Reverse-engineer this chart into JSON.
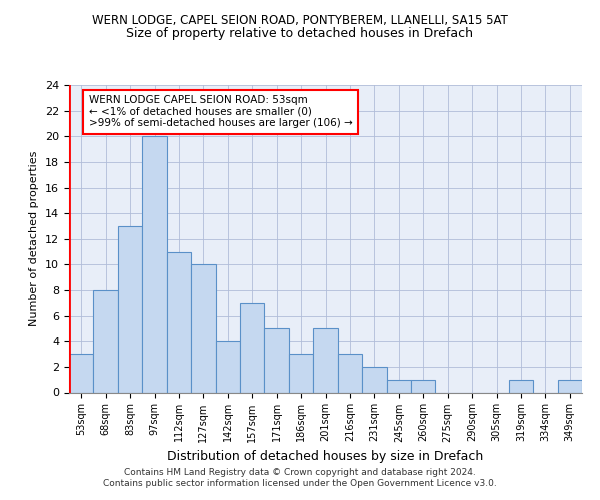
{
  "title1": "WERN LODGE, CAPEL SEION ROAD, PONTYBEREM, LLANELLI, SA15 5AT",
  "title2": "Size of property relative to detached houses in Drefach",
  "xlabel": "Distribution of detached houses by size in Drefach",
  "ylabel": "Number of detached properties",
  "categories": [
    "53sqm",
    "68sqm",
    "83sqm",
    "97sqm",
    "112sqm",
    "127sqm",
    "142sqm",
    "157sqm",
    "171sqm",
    "186sqm",
    "201sqm",
    "216sqm",
    "231sqm",
    "245sqm",
    "260sqm",
    "275sqm",
    "290sqm",
    "305sqm",
    "319sqm",
    "334sqm",
    "349sqm"
  ],
  "values": [
    3,
    8,
    13,
    20,
    11,
    10,
    4,
    7,
    5,
    3,
    5,
    3,
    2,
    1,
    1,
    0,
    0,
    0,
    1,
    0,
    1
  ],
  "bar_color": "#c5d8f0",
  "bar_edge_color": "#5a90c8",
  "highlight_color": "#ff0000",
  "annotation_text": "WERN LODGE CAPEL SEION ROAD: 53sqm\n← <1% of detached houses are smaller (0)\n>99% of semi-detached houses are larger (106) →",
  "ylim": [
    0,
    24
  ],
  "yticks": [
    0,
    2,
    4,
    6,
    8,
    10,
    12,
    14,
    16,
    18,
    20,
    22,
    24
  ],
  "footer": "Contains HM Land Registry data © Crown copyright and database right 2024.\nContains public sector information licensed under the Open Government Licence v3.0.",
  "plot_bg_color": "#e8eef8"
}
